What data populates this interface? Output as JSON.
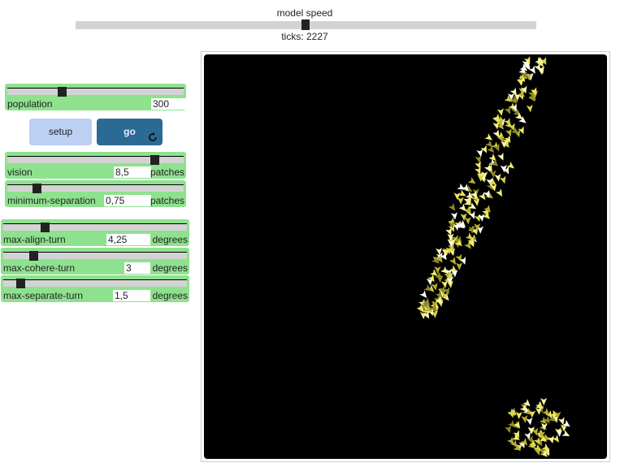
{
  "speed": {
    "label": "model speed",
    "value": 0.5
  },
  "ticks": {
    "label": "ticks: 2227"
  },
  "population": {
    "name": "population",
    "value": "300",
    "unit": "",
    "level": 0.3
  },
  "buttons": {
    "setup": "setup",
    "go": "go"
  },
  "vision": {
    "name": "vision",
    "value": "8,5",
    "unit": "patches",
    "level": 0.85
  },
  "min_sep": {
    "name": "minimum-separation",
    "value": "0,75",
    "unit": "patches",
    "level": 0.15
  },
  "align": {
    "name": "max-align-turn",
    "value": "4,25",
    "unit": "degrees",
    "level": 0.21
  },
  "cohere": {
    "name": "max-cohere-turn",
    "value": "3",
    "unit": "degrees",
    "level": 0.15
  },
  "separate": {
    "name": "max-separate-turn",
    "value": "1,5",
    "unit": "degrees",
    "level": 0.08
  },
  "colors": {
    "slider_bg": "#8ee28e",
    "go_button": "#2c6a96",
    "setup_button": "#bcd0f3",
    "boid": "#f0ec6a"
  }
}
